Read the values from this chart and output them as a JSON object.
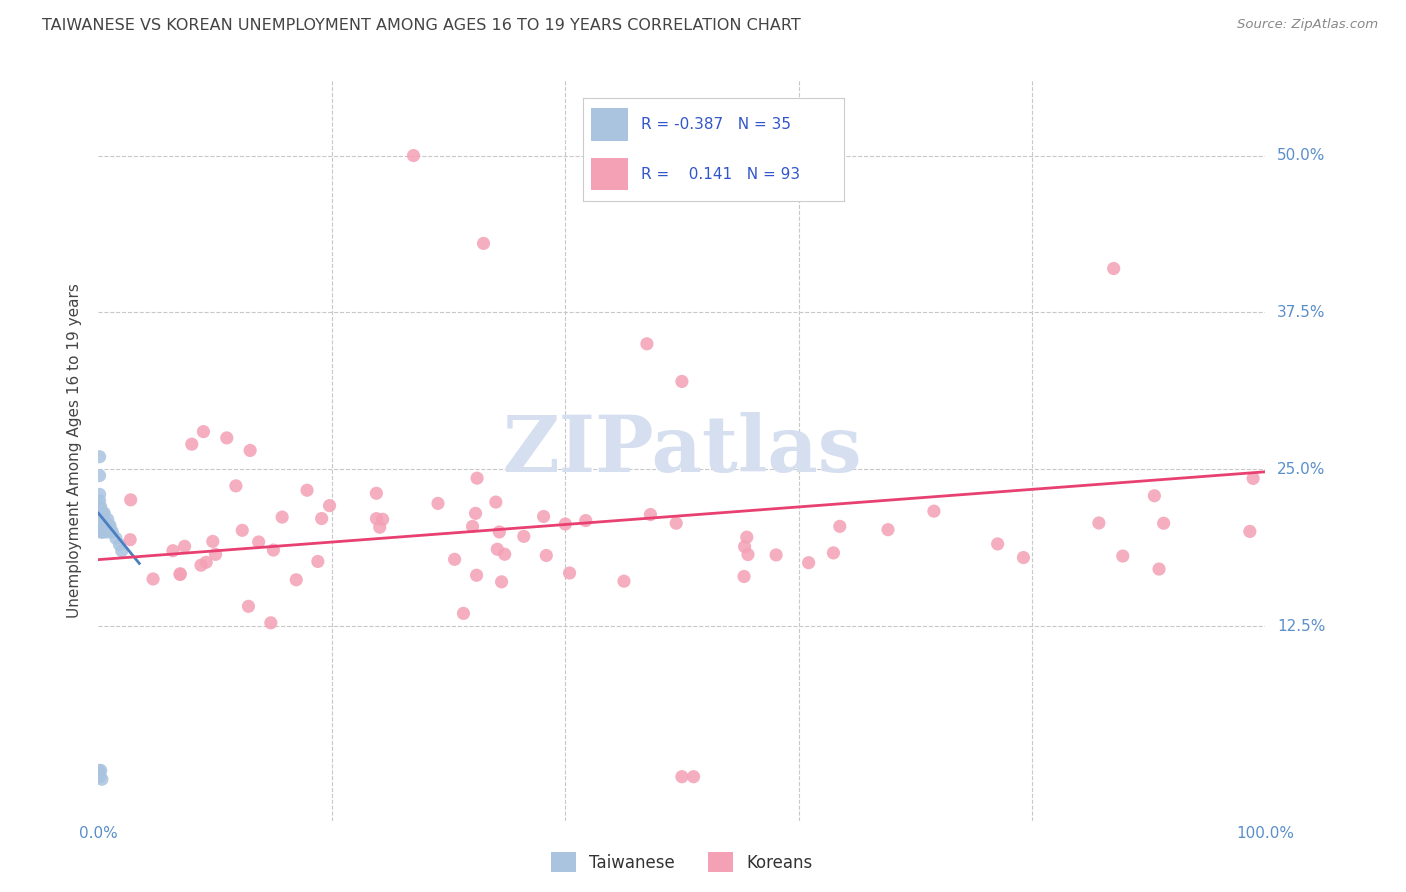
{
  "title": "TAIWANESE VS KOREAN UNEMPLOYMENT AMONG AGES 16 TO 19 YEARS CORRELATION CHART",
  "source": "Source: ZipAtlas.com",
  "ylabel": "Unemployment Among Ages 16 to 19 years",
  "xlim": [
    0.0,
    1.0
  ],
  "ylim": [
    -0.03,
    0.56
  ],
  "y_ticks": [
    0.0,
    0.125,
    0.25,
    0.375,
    0.5
  ],
  "y_tick_labels": [
    "",
    "12.5%",
    "25.0%",
    "37.5%",
    "50.0%"
  ],
  "legend_R_taiwanese": "-0.387",
  "legend_N_taiwanese": "35",
  "legend_R_korean": "0.141",
  "legend_N_korean": "93",
  "taiwanese_color": "#aac4e0",
  "korean_color": "#f4a0b5",
  "trendline_taiwanese_color": "#4a7fc0",
  "trendline_korean_color": "#e84070",
  "background_color": "#ffffff",
  "grid_color": "#c8c8c8",
  "title_color": "#444444",
  "axis_label_color": "#5b8fc9",
  "watermark_color": "#d5dff0",
  "tw_trendline_x": [
    0.0,
    0.035
  ],
  "tw_trendline_y": [
    0.215,
    0.175
  ],
  "kor_trendline_x": [
    0.0,
    1.0
  ],
  "kor_trendline_y": [
    0.178,
    0.248
  ]
}
